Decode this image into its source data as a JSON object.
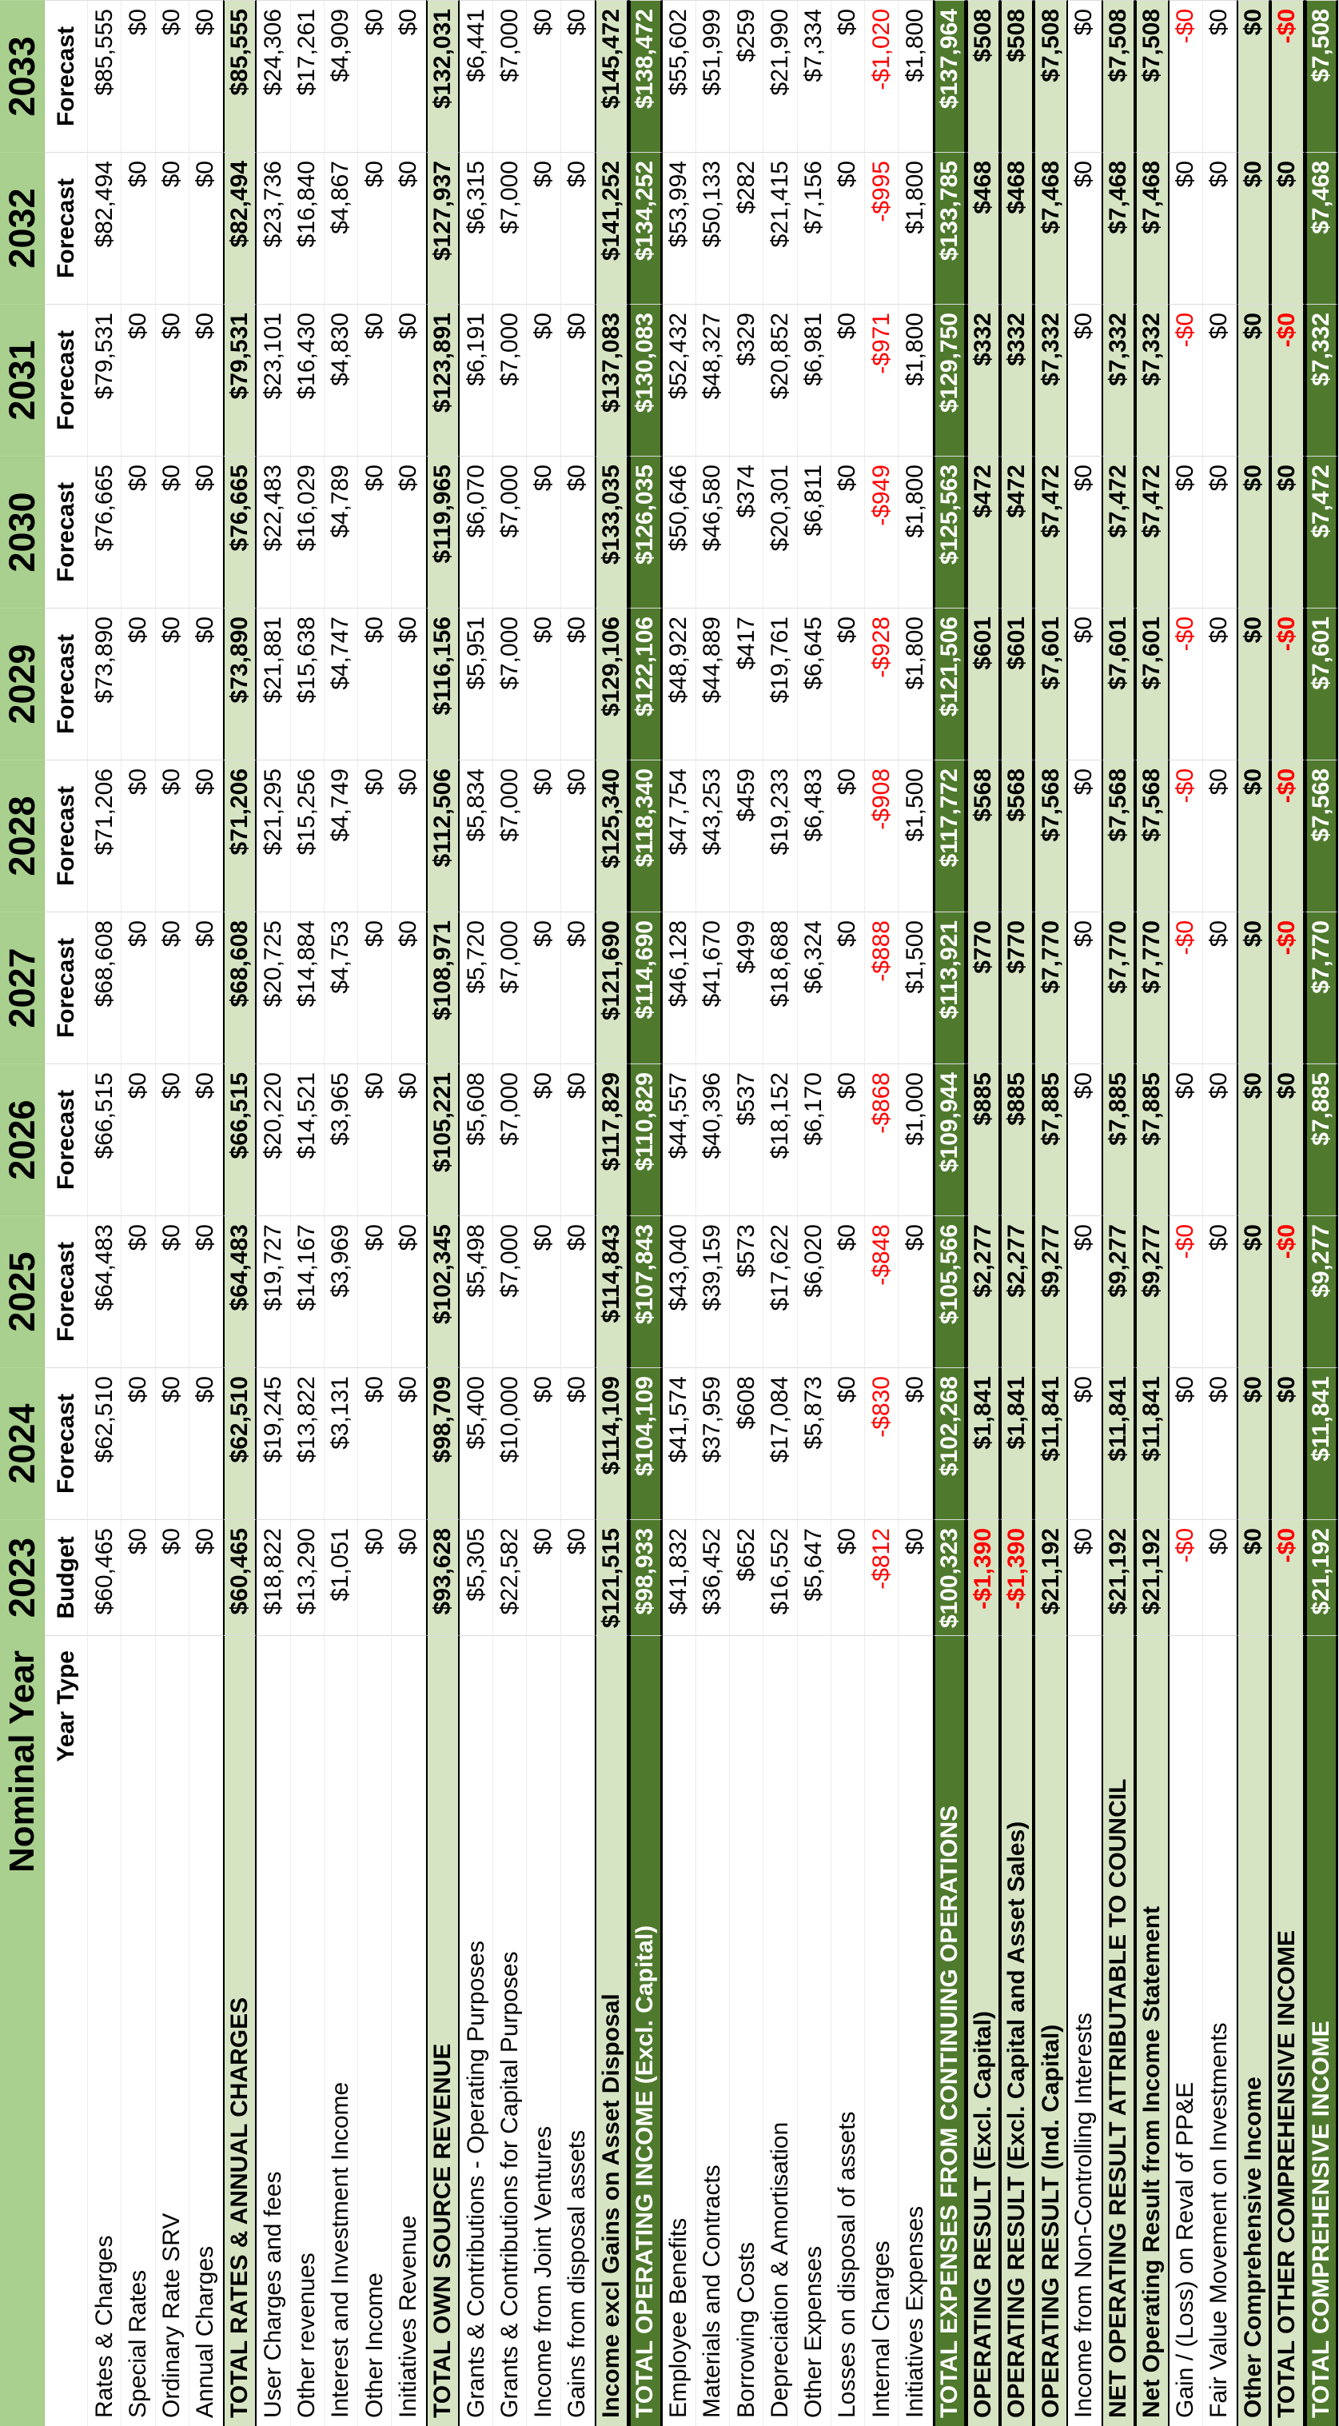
{
  "table": {
    "title": "Nominal Year",
    "year_type_label": "Year Type",
    "years": [
      "2023",
      "2024",
      "2025",
      "2026",
      "2027",
      "2028",
      "2029",
      "2030",
      "2031",
      "2032",
      "2033"
    ],
    "year_types": [
      "Budget",
      "Forecast",
      "Forecast",
      "Forecast",
      "Forecast",
      "Forecast",
      "Forecast",
      "Forecast",
      "Forecast",
      "Forecast",
      "Forecast"
    ],
    "rows": [
      {
        "label": "Rates & Charges",
        "style": "normal",
        "values": [
          "$60,465",
          "$62,510",
          "$64,483",
          "$66,515",
          "$68,608",
          "$71,206",
          "$73,890",
          "$76,665",
          "$79,531",
          "$82,494",
          "$85,555"
        ]
      },
      {
        "label": "Special Rates",
        "style": "normal",
        "values": [
          "$0",
          "$0",
          "$0",
          "$0",
          "$0",
          "$0",
          "$0",
          "$0",
          "$0",
          "$0",
          "$0"
        ]
      },
      {
        "label": "Ordinary Rate SRV",
        "style": "normal",
        "values": [
          "$0",
          "$0",
          "$0",
          "$0",
          "$0",
          "$0",
          "$0",
          "$0",
          "$0",
          "$0",
          "$0"
        ]
      },
      {
        "label": "Annual Charges",
        "style": "normal",
        "values": [
          "$0",
          "$0",
          "$0",
          "$0",
          "$0",
          "$0",
          "$0",
          "$0",
          "$0",
          "$0",
          "$0"
        ]
      },
      {
        "label": "TOTAL RATES & ANNUAL CHARGES",
        "style": "subtotal",
        "values": [
          "$60,465",
          "$62,510",
          "$64,483",
          "$66,515",
          "$68,608",
          "$71,206",
          "$73,890",
          "$76,665",
          "$79,531",
          "$82,494",
          "$85,555"
        ]
      },
      {
        "label": "User Charges and fees",
        "style": "normal",
        "values": [
          "$18,822",
          "$19,245",
          "$19,727",
          "$20,220",
          "$20,725",
          "$21,295",
          "$21,881",
          "$22,483",
          "$23,101",
          "$23,736",
          "$24,306"
        ]
      },
      {
        "label": "Other revenues",
        "style": "normal",
        "values": [
          "$13,290",
          "$13,822",
          "$14,167",
          "$14,521",
          "$14,884",
          "$15,256",
          "$15,638",
          "$16,029",
          "$16,430",
          "$16,840",
          "$17,261"
        ]
      },
      {
        "label": "Interest and Investment Income",
        "style": "normal",
        "values": [
          "$1,051",
          "$3,131",
          "$3,969",
          "$3,965",
          "$4,753",
          "$4,749",
          "$4,747",
          "$4,789",
          "$4,830",
          "$4,867",
          "$4,909"
        ]
      },
      {
        "label": "Other Income",
        "style": "normal",
        "values": [
          "$0",
          "$0",
          "$0",
          "$0",
          "$0",
          "$0",
          "$0",
          "$0",
          "$0",
          "$0",
          "$0"
        ]
      },
      {
        "label": "Initiatives Revenue",
        "style": "normal",
        "values": [
          "$0",
          "$0",
          "$0",
          "$0",
          "$0",
          "$0",
          "$0",
          "$0",
          "$0",
          "$0",
          "$0"
        ]
      },
      {
        "label": "TOTAL OWN SOURCE REVENUE",
        "style": "subtotal",
        "values": [
          "$93,628",
          "$98,709",
          "$102,345",
          "$105,221",
          "$108,971",
          "$112,506",
          "$116,156",
          "$119,965",
          "$123,891",
          "$127,937",
          "$132,031"
        ]
      },
      {
        "label": "Grants & Contributions - Operating Purposes",
        "style": "normal",
        "values": [
          "$5,305",
          "$5,400",
          "$5,498",
          "$5,608",
          "$5,720",
          "$5,834",
          "$5,951",
          "$6,070",
          "$6,191",
          "$6,315",
          "$6,441"
        ]
      },
      {
        "label": "Grants & Contributions for Capital Purposes",
        "style": "normal",
        "values": [
          "$22,582",
          "$10,000",
          "$7,000",
          "$7,000",
          "$7,000",
          "$7,000",
          "$7,000",
          "$7,000",
          "$7,000",
          "$7,000",
          "$7,000"
        ]
      },
      {
        "label": "Income from Joint Ventures",
        "style": "normal",
        "values": [
          "$0",
          "$0",
          "$0",
          "$0",
          "$0",
          "$0",
          "$0",
          "$0",
          "$0",
          "$0",
          "$0"
        ]
      },
      {
        "label": "Gains from disposal assets",
        "style": "normal",
        "values": [
          "$0",
          "$0",
          "$0",
          "$0",
          "$0",
          "$0",
          "$0",
          "$0",
          "$0",
          "$0",
          "$0"
        ]
      },
      {
        "label": "Income excl Gains on Asset Disposal",
        "style": "subtotal",
        "values": [
          "$121,515",
          "$114,109",
          "$114,843",
          "$117,829",
          "$121,690",
          "$125,340",
          "$129,106",
          "$133,035",
          "$137,083",
          "$141,252",
          "$145,472"
        ]
      },
      {
        "label": "TOTAL OPERATING INCOME (Excl. Capital)",
        "style": "grand",
        "values": [
          "$98,933",
          "$104,109",
          "$107,843",
          "$110,829",
          "$114,690",
          "$118,340",
          "$122,106",
          "$126,035",
          "$130,083",
          "$134,252",
          "$138,472"
        ]
      },
      {
        "label": "Employee Benefits",
        "style": "normal",
        "values": [
          "$41,832",
          "$41,574",
          "$43,040",
          "$44,557",
          "$46,128",
          "$47,754",
          "$48,922",
          "$50,646",
          "$52,432",
          "$53,994",
          "$55,602"
        ]
      },
      {
        "label": "Materials and Contracts",
        "style": "normal",
        "values": [
          "$36,452",
          "$37,959",
          "$39,159",
          "$40,396",
          "$41,670",
          "$43,253",
          "$44,889",
          "$46,580",
          "$48,327",
          "$50,133",
          "$51,999"
        ]
      },
      {
        "label": "Borrowing Costs",
        "style": "normal",
        "values": [
          "$652",
          "$608",
          "$573",
          "$537",
          "$499",
          "$459",
          "$417",
          "$374",
          "$329",
          "$282",
          "$259"
        ]
      },
      {
        "label": "Depreciation & Amortisation",
        "style": "normal",
        "values": [
          "$16,552",
          "$17,084",
          "$17,622",
          "$18,152",
          "$18,688",
          "$19,233",
          "$19,761",
          "$20,301",
          "$20,852",
          "$21,415",
          "$21,990"
        ]
      },
      {
        "label": "Other Expenses",
        "style": "normal",
        "values": [
          "$5,647",
          "$5,873",
          "$6,020",
          "$6,170",
          "$6,324",
          "$6,483",
          "$6,645",
          "$6,811",
          "$6,981",
          "$7,156",
          "$7,334"
        ]
      },
      {
        "label": "Losses on disposal of assets",
        "style": "normal",
        "values": [
          "$0",
          "$0",
          "$0",
          "$0",
          "$0",
          "$0",
          "$0",
          "$0",
          "$0",
          "$0",
          "$0"
        ]
      },
      {
        "label": "Internal Charges",
        "style": "normal",
        "values": [
          "-$812",
          "-$830",
          "-$848",
          "-$868",
          "-$888",
          "-$908",
          "-$928",
          "-$949",
          "-$971",
          "-$995",
          "-$1,020"
        ]
      },
      {
        "label": "Initiatives Expenses",
        "style": "normal",
        "values": [
          "$0",
          "$0",
          "$0",
          "$1,000",
          "$1,500",
          "$1,500",
          "$1,800",
          "$1,800",
          "$1,800",
          "$1,800",
          "$1,800"
        ]
      },
      {
        "label": "TOTAL EXPENSES FROM CONTINUING OPERATIONS",
        "style": "grand",
        "values": [
          "$100,323",
          "$102,268",
          "$105,566",
          "$109,944",
          "$113,921",
          "$117,772",
          "$121,506",
          "$125,563",
          "$129,750",
          "$133,785",
          "$137,964"
        ]
      },
      {
        "label": "OPERATING RESULT (Excl. Capital)",
        "style": "subtotal",
        "values": [
          "-$1,390",
          "$1,841",
          "$2,277",
          "$885",
          "$770",
          "$568",
          "$601",
          "$472",
          "$332",
          "$468",
          "$508"
        ]
      },
      {
        "label": "OPERATING RESULT (Excl. Capital and Asset Sales)",
        "style": "subtotal",
        "values": [
          "-$1,390",
          "$1,841",
          "$2,277",
          "$885",
          "$770",
          "$568",
          "$601",
          "$472",
          "$332",
          "$468",
          "$508"
        ]
      },
      {
        "label": "OPERATING RESULT (Ind. Capital)",
        "style": "subtotal",
        "values": [
          "$21,192",
          "$11,841",
          "$9,277",
          "$7,885",
          "$7,770",
          "$7,568",
          "$7,601",
          "$7,472",
          "$7,332",
          "$7,468",
          "$7,508"
        ]
      },
      {
        "label": "Income from Non-Controlling Interests",
        "style": "normal",
        "values": [
          "$0",
          "$0",
          "$0",
          "$0",
          "$0",
          "$0",
          "$0",
          "$0",
          "$0",
          "$0",
          "$0"
        ]
      },
      {
        "label": "NET OPERATING RESULT ATTRIBUTABLE TO COUNCIL",
        "style": "subtotal",
        "values": [
          "$21,192",
          "$11,841",
          "$9,277",
          "$7,885",
          "$7,770",
          "$7,568",
          "$7,601",
          "$7,472",
          "$7,332",
          "$7,468",
          "$7,508"
        ]
      },
      {
        "label": "Net Operating Result from Income Statement",
        "style": "subtotal",
        "values": [
          "$21,192",
          "$11,841",
          "$9,277",
          "$7,885",
          "$7,770",
          "$7,568",
          "$7,601",
          "$7,472",
          "$7,332",
          "$7,468",
          "$7,508"
        ]
      },
      {
        "label": "Gain / (Loss) on Reval of PP&E",
        "style": "normal",
        "values": [
          "-$0",
          "$0",
          "-$0",
          "$0",
          "-$0",
          "-$0",
          "-$0",
          "$0",
          "-$0",
          "$0",
          "-$0"
        ]
      },
      {
        "label": "Fair Value Movement on Investments",
        "style": "normal",
        "values": [
          "$0",
          "$0",
          "$0",
          "$0",
          "$0",
          "$0",
          "$0",
          "$0",
          "$0",
          "$0",
          "$0"
        ]
      },
      {
        "label": "Other Comprehensive Income",
        "style": "subtotal",
        "values": [
          "$0",
          "$0",
          "$0",
          "$0",
          "$0",
          "$0",
          "$0",
          "$0",
          "$0",
          "$0",
          "$0"
        ]
      },
      {
        "label": "TOTAL OTHER COMPREHENSIVE INCOME",
        "style": "subtotal",
        "values": [
          "-$0",
          "$0",
          "-$0",
          "$0",
          "-$0",
          "-$0",
          "-$0",
          "$0",
          "-$0",
          "$0",
          "-$0"
        ]
      },
      {
        "label": "TOTAL COMPREHENSIVE INCOME",
        "style": "grand",
        "values": [
          "$21,192",
          "$11,841",
          "$9,277",
          "$7,885",
          "$7,770",
          "$7,568",
          "$7,601",
          "$7,472",
          "$7,332",
          "$7,468",
          "$7,508"
        ]
      }
    ]
  },
  "colors": {
    "header_green": "#a9d08e",
    "subtotal_green": "#d6e4c3",
    "total_green": "#4f7a2e",
    "negative_red": "#ff0000",
    "text": "#000000",
    "gridline": "#dcdcdc"
  }
}
